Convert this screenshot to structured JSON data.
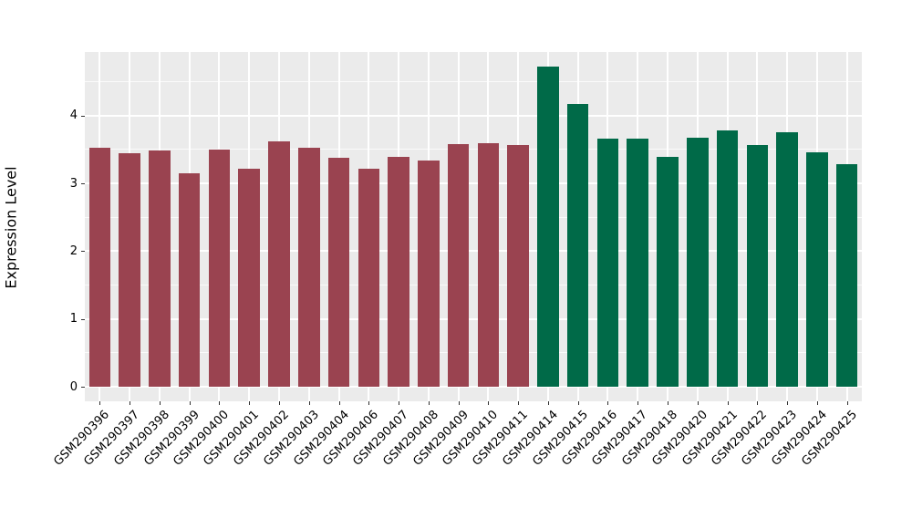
{
  "figure": {
    "background": "#FFFFFF",
    "panel_background": "#EBEBEB",
    "gridline_major_color": "#FFFFFF",
    "gridline_minor_color": "#FAFAFA",
    "tick_color": "#333333",
    "text_color": "#000000"
  },
  "chart_data": {
    "type": "bar",
    "title": "",
    "xlabel": "",
    "ylabel": "Expression Level",
    "ylim": [
      0,
      4.95
    ],
    "yticks": [
      0,
      1,
      2,
      3,
      4
    ],
    "yticks_minor": [
      0.5,
      1.5,
      2.5,
      3.5,
      4.5
    ],
    "grid": "major and minor horizontal white lines, major vertical white lines at category centers, on gray panel",
    "legend_position": "none",
    "x_tick_label_rotation_deg": 45,
    "categories": [
      "GSM290396",
      "GSM290397",
      "GSM290398",
      "GSM290399",
      "GSM290400",
      "GSM290401",
      "GSM290402",
      "GSM290403",
      "GSM290404",
      "GSM290406",
      "GSM290407",
      "GSM290408",
      "GSM290409",
      "GSM290410",
      "GSM290411",
      "GSM290414",
      "GSM290415",
      "GSM290416",
      "GSM290417",
      "GSM290418",
      "GSM290420",
      "GSM290421",
      "GSM290422",
      "GSM290423",
      "GSM290424",
      "GSM290425"
    ],
    "values": [
      3.53,
      3.44,
      3.48,
      3.15,
      3.5,
      3.22,
      3.62,
      3.52,
      3.38,
      3.22,
      3.39,
      3.34,
      3.58,
      3.6,
      3.57,
      4.72,
      4.17,
      3.66,
      3.66,
      3.39,
      3.67,
      3.78,
      3.57,
      3.75,
      3.46,
      3.29
    ],
    "bar_groups": [
      "maroon",
      "maroon",
      "maroon",
      "maroon",
      "maroon",
      "maroon",
      "maroon",
      "maroon",
      "maroon",
      "maroon",
      "maroon",
      "maroon",
      "maroon",
      "maroon",
      "maroon",
      "green",
      "green",
      "green",
      "green",
      "green",
      "green",
      "green",
      "green",
      "green",
      "green",
      "green"
    ],
    "group_colors": {
      "maroon": "#9A4350",
      "green": "#006A48"
    }
  }
}
